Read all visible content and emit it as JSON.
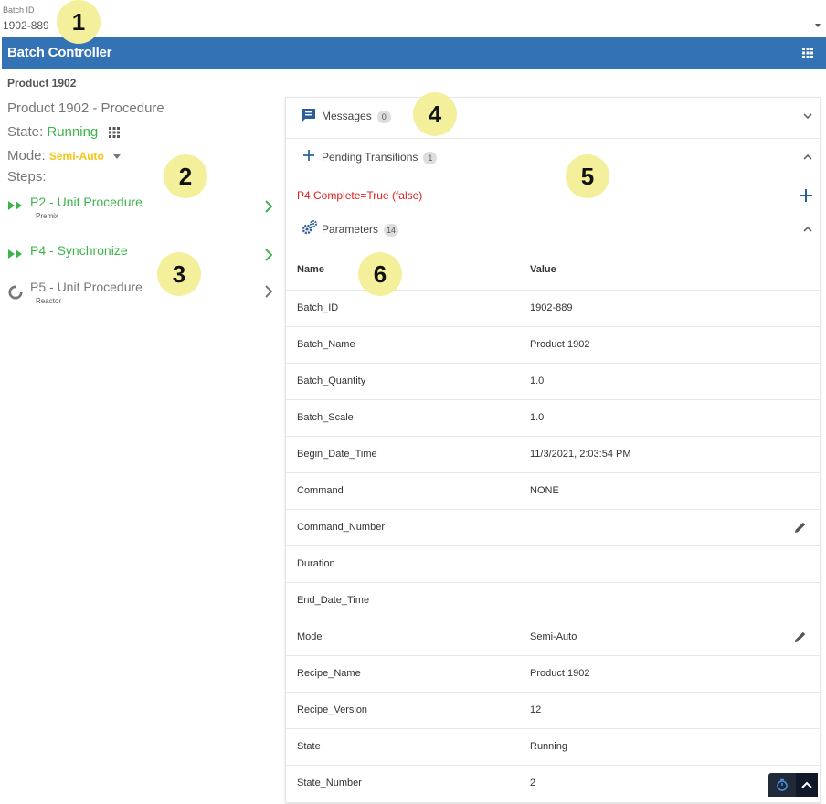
{
  "batch_select": {
    "label": "Batch ID",
    "value": "1902-889"
  },
  "header": {
    "title": "Batch Controller"
  },
  "product_label": "Product 1902",
  "procedure": {
    "title": "Product 1902 - Procedure",
    "state_label": "State:",
    "state_value": "Running",
    "mode_label": "Mode:",
    "mode_value": "Semi-Auto",
    "steps_label": "Steps:"
  },
  "steps": [
    {
      "name": "P2 - Unit Procedure",
      "sub": "Premix",
      "status": "running"
    },
    {
      "name": "P4 - Synchronize",
      "sub": "",
      "status": "running"
    },
    {
      "name": "P5 - Unit Procedure",
      "sub": "Reactor",
      "status": "idle"
    }
  ],
  "sections": {
    "messages": {
      "label": "Messages",
      "count": "0"
    },
    "pending": {
      "label": "Pending Transitions",
      "count": "1",
      "item": "P4.Complete=True (false)"
    },
    "parameters": {
      "label": "Parameters",
      "count": "14"
    }
  },
  "param_table": {
    "headers": [
      "Name",
      "Value"
    ],
    "rows": [
      [
        "Batch_ID",
        "1902-889"
      ],
      [
        "Batch_Name",
        "Product 1902"
      ],
      [
        "Batch_Quantity",
        "1.0"
      ],
      [
        "Batch_Scale",
        "1.0"
      ],
      [
        "Begin_Date_Time",
        "11/3/2021, 2:03:54 PM"
      ],
      [
        "Command",
        "NONE"
      ],
      [
        "Command_Number",
        ""
      ],
      [
        "Duration",
        ""
      ],
      [
        "End_Date_Time",
        ""
      ],
      [
        "Mode",
        "Semi-Auto"
      ],
      [
        "Recipe_Name",
        "Product 1902"
      ],
      [
        "Recipe_Version",
        "12"
      ],
      [
        "State",
        "Running"
      ],
      [
        "State_Number",
        "2"
      ]
    ]
  },
  "callouts": [
    "1",
    "2",
    "3",
    "4",
    "5",
    "6"
  ],
  "colors": {
    "header": "#3372b5",
    "running": "#3cb44b",
    "mode": "#f5c518",
    "transition": "#e02020",
    "callout": "#f3ef9a"
  },
  "icons": [
    "grid-icon",
    "fast-forward-icon",
    "spinner-icon",
    "chevron-right-icon",
    "message-icon",
    "plus-icon",
    "gears-icon",
    "chevron-down-icon",
    "chevron-up-icon",
    "pencil-icon",
    "timer-icon"
  ]
}
